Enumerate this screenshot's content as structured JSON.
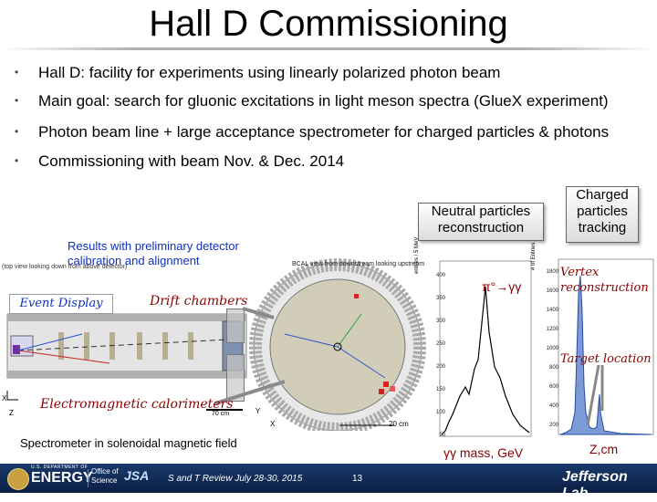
{
  "title": "Hall D Commissioning",
  "bullets": [
    "Hall D: facility for experiments using linearly polarized photon beam",
    "Main goal: search for gluonic excitations in light meson spectra (GlueX experiment)",
    "Photon beam line + large acceptance spectrometer for charged particles & photons",
    "Commissioning with beam Nov. & Dec. 2014"
  ],
  "bullet_glyph": "•",
  "callouts": {
    "neutral": "Neutral particles reconstruction",
    "charged": "Charged particles tracking"
  },
  "results_note": "Results with preliminary detector calibration and alignment",
  "labels": {
    "event_display": "Event Display",
    "drift_chambers": "Drift chambers",
    "em_calorimeters": "Electromagnetic calorimeters",
    "spectrometer": "Spectrometer in solenoidal magnetic field",
    "pi0": "π°→γγ",
    "gg_mass": "γγ mass, GeV",
    "vertex": "Vertex reconstruction",
    "target": "Target location",
    "zcm": "Z,cm",
    "bcal_header": "BCAL view from downstream looking upstream",
    "side_header": "(top view looking down from above detector)",
    "scale_70": "70 cm",
    "scale_20": "20 cm",
    "axis_x": "X",
    "axis_y": "Y",
    "axis_z": "Z",
    "hist_ylabel": "entries / 5 MeV",
    "hist2_ylabel": "# of Entries"
  },
  "hist1": {
    "yticks": [
      "400",
      "350",
      "300",
      "250",
      "200",
      "150",
      "100",
      "50"
    ]
  },
  "hist2": {
    "yticks": [
      "1800",
      "1600",
      "1400",
      "1200",
      "1000",
      "800",
      "600",
      "400",
      "200"
    ]
  },
  "footer": {
    "doe": "ENERGY",
    "office_line1": "Office of",
    "office_line2": "Science",
    "review": "S and T Review July 28-30, 2015",
    "page": "13",
    "lab": "Jefferson Lab",
    "doe_small": "U.S. DEPARTMENT OF",
    "jsa": "JSA"
  },
  "colors": {
    "note_blue": "#1030c0",
    "italic_red": "#8b0000",
    "footer_navy": "#0a1e44",
    "detector_gray": "#c8c4b4"
  }
}
